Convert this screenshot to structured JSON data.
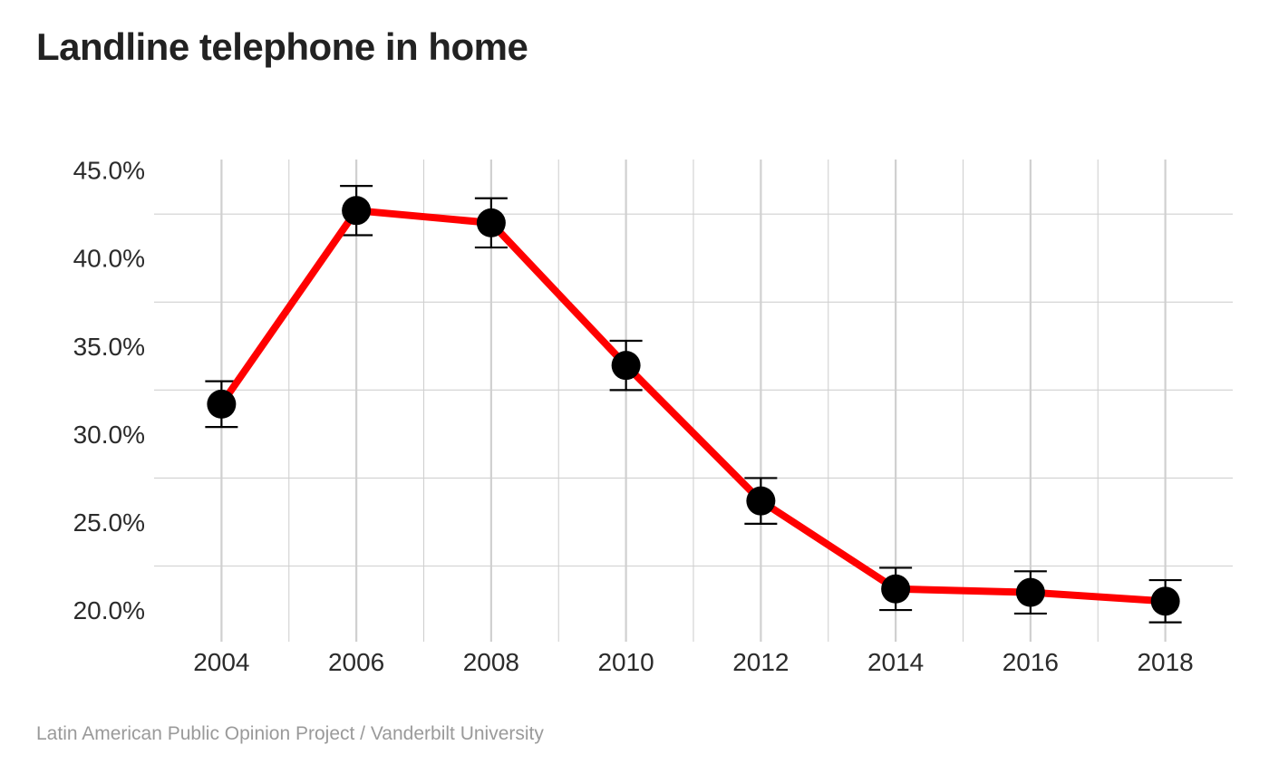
{
  "chart_data": {
    "type": "line",
    "title": "Landline telephone in home",
    "caption": "Latin American Public Opinion Project / Vanderbilt University",
    "xlabel": "",
    "ylabel": "",
    "x": [
      2004,
      2006,
      2008,
      2010,
      2012,
      2014,
      2016,
      2018
    ],
    "x_tick_labels": [
      "2004",
      "2006",
      "2008",
      "2010",
      "2012",
      "2014",
      "2016",
      "2018"
    ],
    "y_tick_values": [
      20,
      25,
      30,
      35,
      40,
      45
    ],
    "y_tick_labels": [
      "20.0%",
      "25.0%",
      "30.0%",
      "35.0%",
      "40.0%",
      "45.0%"
    ],
    "xlim": [
      2003,
      2019
    ],
    "ylim": [
      18.2,
      45.6
    ],
    "grid": true,
    "series": [
      {
        "values": [
          31.7,
          42.7,
          42.0,
          33.9,
          26.2,
          21.2,
          21.0,
          20.5
        ],
        "ci_lower": [
          30.4,
          41.3,
          40.6,
          32.5,
          24.9,
          20.0,
          19.8,
          19.3
        ],
        "ci_upper": [
          33.0,
          44.1,
          43.4,
          35.3,
          27.5,
          22.4,
          22.2,
          21.7
        ]
      }
    ],
    "colors": {
      "line": "#ff0000",
      "point": "#000000",
      "errorbar": "#000000",
      "grid": "#d0d0d0"
    }
  }
}
